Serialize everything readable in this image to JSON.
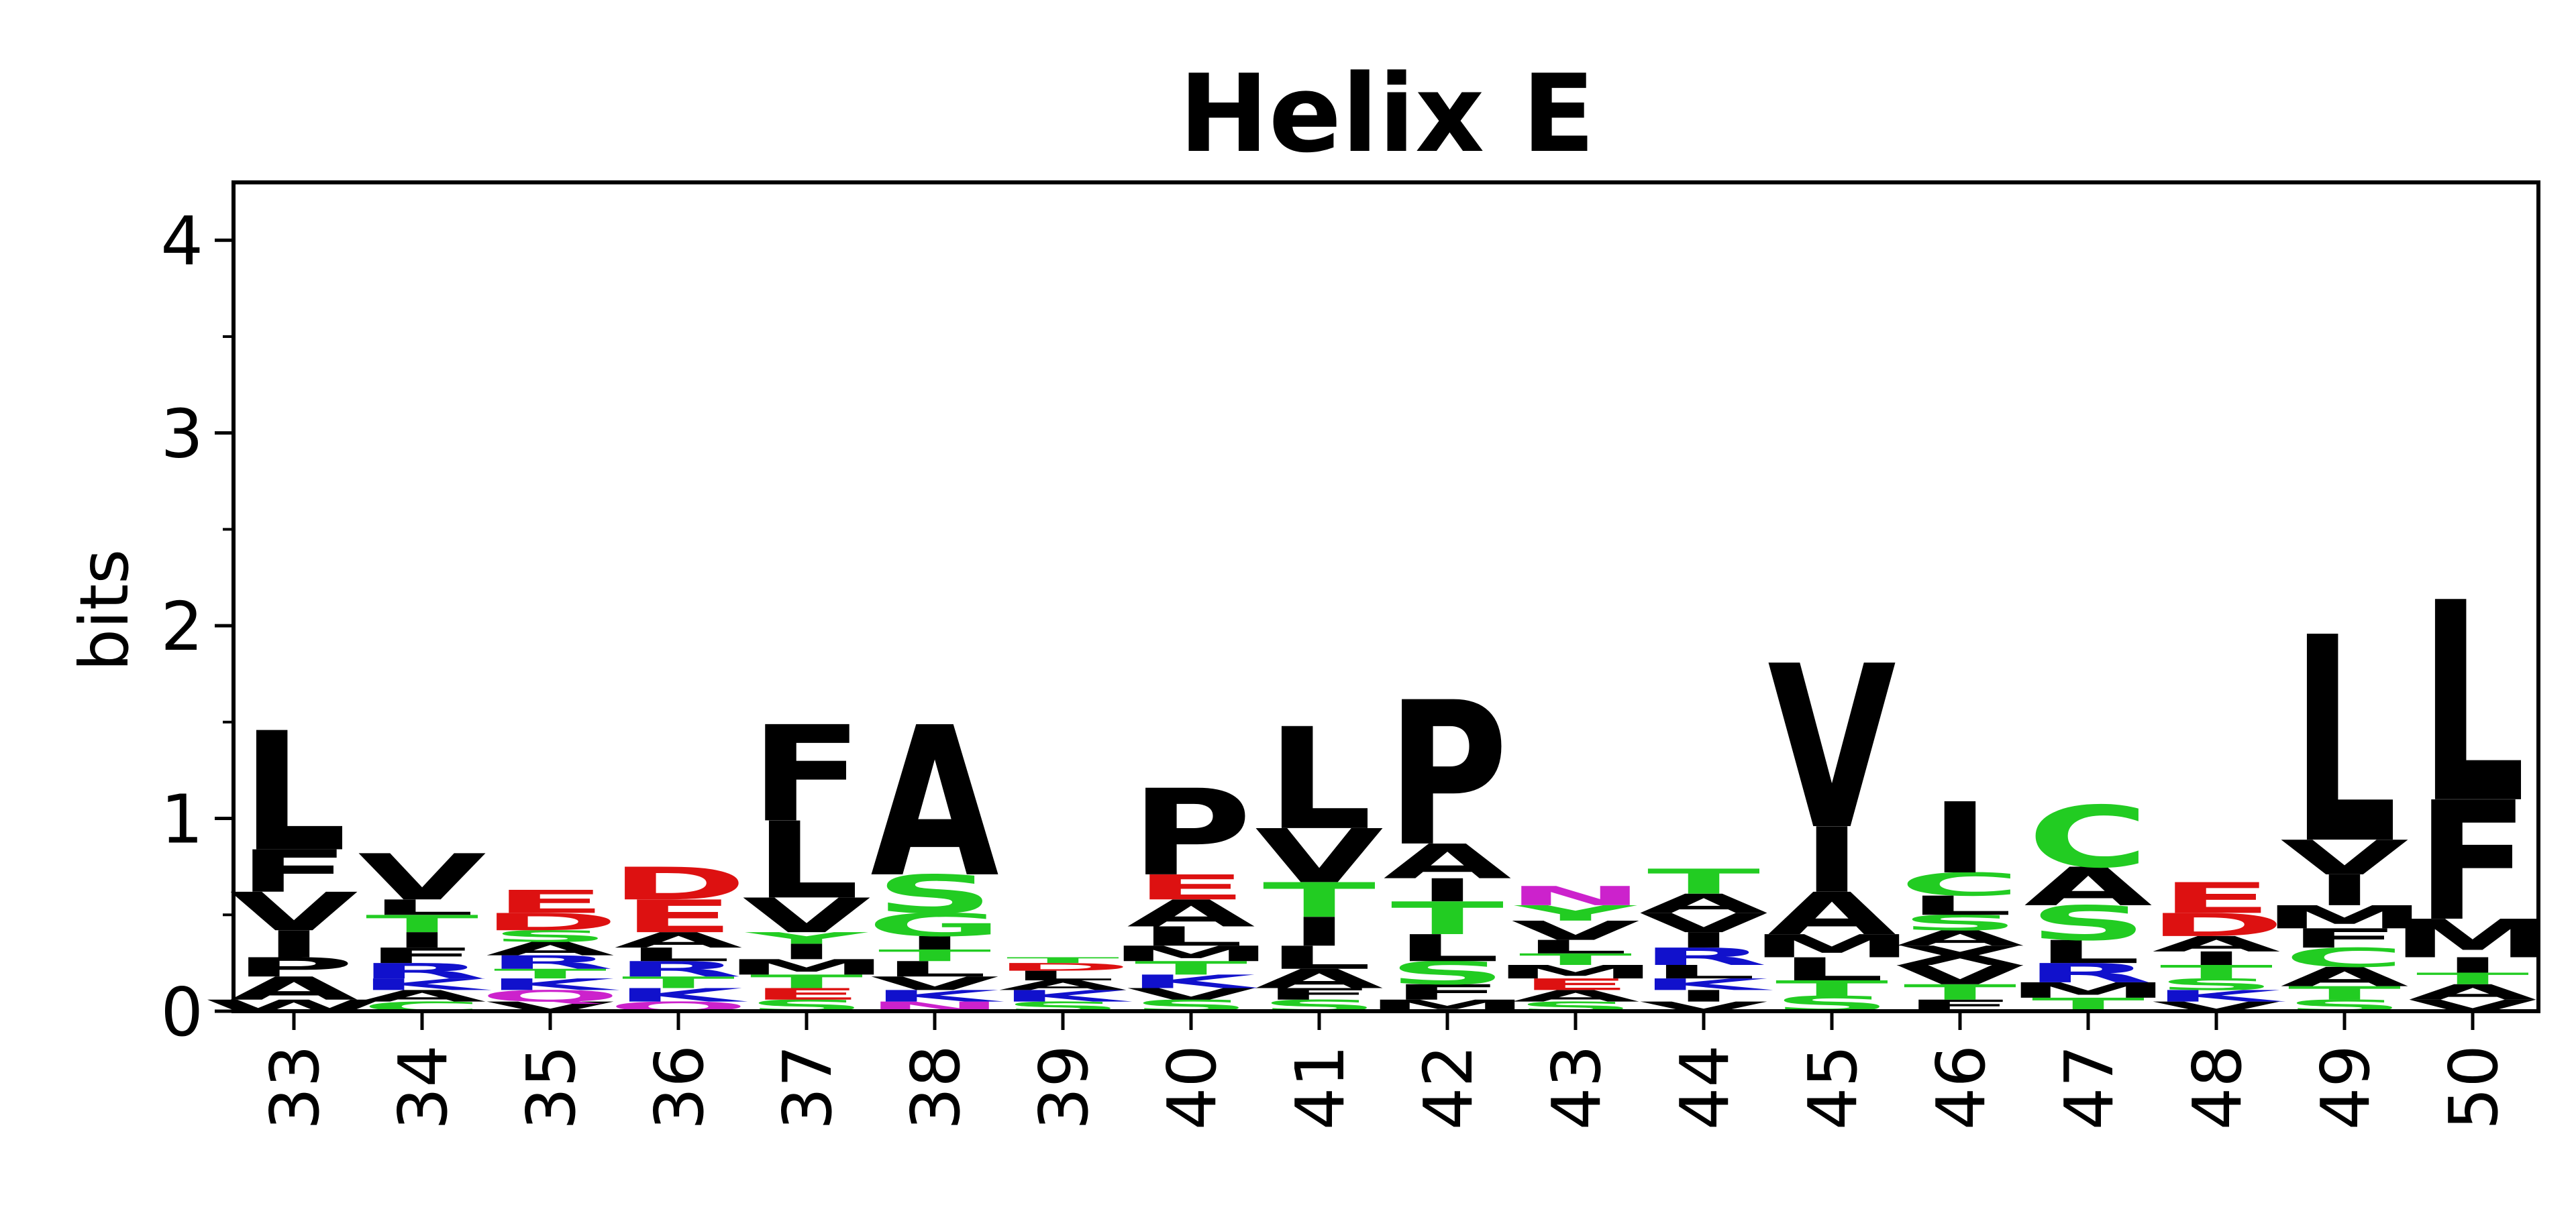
{
  "chart_data": {
    "type": "sequence-logo",
    "title": "Helix E",
    "xlabel": "",
    "ylabel": "bits",
    "ylim": [
      0,
      4.3
    ],
    "yticks": [
      "0",
      "1",
      "2",
      "3",
      "4"
    ],
    "grid": false,
    "colors": {
      "hydrophobic": "#000000",
      "polar": "#22cc22",
      "acidic": "#dd1111",
      "basic": "#1111cc",
      "amide": "#cc22cc"
    },
    "positions": [
      {
        "label": "33",
        "stack": [
          [
            "W",
            0.06,
            "hydrophobic"
          ],
          [
            "A",
            0.12,
            "hydrophobic"
          ],
          [
            "P",
            0.1,
            "hydrophobic"
          ],
          [
            "I",
            0.14,
            "hydrophobic"
          ],
          [
            "V",
            0.2,
            "hydrophobic"
          ],
          [
            "F",
            0.22,
            "hydrophobic"
          ],
          [
            "L",
            0.62,
            "hydrophobic"
          ]
        ]
      },
      {
        "label": "34",
        "stack": [
          [
            "C",
            0.05,
            "polar"
          ],
          [
            "A",
            0.06,
            "hydrophobic"
          ],
          [
            "K",
            0.06,
            "basic"
          ],
          [
            "R",
            0.08,
            "basic"
          ],
          [
            "F",
            0.08,
            "hydrophobic"
          ],
          [
            "I",
            0.08,
            "hydrophobic"
          ],
          [
            "T",
            0.09,
            "polar"
          ],
          [
            "L",
            0.08,
            "hydrophobic"
          ],
          [
            "V",
            0.24,
            "hydrophobic"
          ]
        ]
      },
      {
        "label": "35",
        "stack": [
          [
            "V",
            0.05,
            "hydrophobic"
          ],
          [
            "Q",
            0.06,
            "amide"
          ],
          [
            "K",
            0.06,
            "basic"
          ],
          [
            "T",
            0.05,
            "polar"
          ],
          [
            "R",
            0.07,
            "basic"
          ],
          [
            "A",
            0.07,
            "hydrophobic"
          ],
          [
            "S",
            0.06,
            "polar"
          ],
          [
            "D",
            0.09,
            "acidic"
          ],
          [
            "E",
            0.12,
            "acidic"
          ]
        ]
      },
      {
        "label": "36",
        "stack": [
          [
            "Q",
            0.05,
            "amide"
          ],
          [
            "K",
            0.07,
            "basic"
          ],
          [
            "T",
            0.06,
            "polar"
          ],
          [
            "R",
            0.08,
            "basic"
          ],
          [
            "L",
            0.07,
            "hydrophobic"
          ],
          [
            "A",
            0.08,
            "hydrophobic"
          ],
          [
            "E",
            0.17,
            "acidic"
          ],
          [
            "D",
            0.17,
            "acidic"
          ]
        ]
      },
      {
        "label": "37",
        "stack": [
          [
            "S",
            0.06,
            "polar"
          ],
          [
            "E",
            0.06,
            "acidic"
          ],
          [
            "T",
            0.07,
            "polar"
          ],
          [
            "M",
            0.08,
            "hydrophobic"
          ],
          [
            "I",
            0.08,
            "hydrophobic"
          ],
          [
            "Y",
            0.06,
            "polar"
          ],
          [
            "V",
            0.18,
            "hydrophobic"
          ],
          [
            "L",
            0.4,
            "hydrophobic"
          ],
          [
            "F",
            0.5,
            "hydrophobic"
          ]
        ]
      },
      {
        "label": "38",
        "stack": [
          [
            "N",
            0.05,
            "amide"
          ],
          [
            "K",
            0.06,
            "basic"
          ],
          [
            "V",
            0.07,
            "hydrophobic"
          ],
          [
            "L",
            0.08,
            "hydrophobic"
          ],
          [
            "T",
            0.06,
            "polar"
          ],
          [
            "I",
            0.07,
            "hydrophobic"
          ],
          [
            "G",
            0.12,
            "polar"
          ],
          [
            "S",
            0.2,
            "polar"
          ],
          [
            "A",
            0.78,
            "hydrophobic"
          ]
        ]
      },
      {
        "label": "39",
        "stack": [
          [
            "S",
            0.05,
            "polar"
          ],
          [
            "K",
            0.06,
            "basic"
          ],
          [
            "A",
            0.05,
            "hydrophobic"
          ],
          [
            "L",
            0.05,
            "hydrophobic"
          ],
          [
            "D",
            0.04,
            "acidic"
          ],
          [
            "T",
            0.03,
            "polar"
          ]
        ]
      },
      {
        "label": "40",
        "stack": [
          [
            "S",
            0.06,
            "polar"
          ],
          [
            "V",
            0.06,
            "hydrophobic"
          ],
          [
            "K",
            0.07,
            "basic"
          ],
          [
            "T",
            0.07,
            "polar"
          ],
          [
            "M",
            0.08,
            "hydrophobic"
          ],
          [
            "L",
            0.1,
            "hydrophobic"
          ],
          [
            "A",
            0.14,
            "hydrophobic"
          ],
          [
            "E",
            0.13,
            "acidic"
          ],
          [
            "P",
            0.45,
            "hydrophobic"
          ]
        ]
      },
      {
        "label": "41",
        "stack": [
          [
            "S",
            0.06,
            "polar"
          ],
          [
            "F",
            0.06,
            "hydrophobic"
          ],
          [
            "A",
            0.1,
            "hydrophobic"
          ],
          [
            "L",
            0.12,
            "hydrophobic"
          ],
          [
            "I",
            0.15,
            "hydrophobic"
          ],
          [
            "T",
            0.18,
            "polar"
          ],
          [
            "V",
            0.28,
            "hydrophobic"
          ],
          [
            "L",
            0.53,
            "hydrophobic"
          ]
        ]
      },
      {
        "label": "42",
        "stack": [
          [
            "M",
            0.06,
            "hydrophobic"
          ],
          [
            "F",
            0.08,
            "hydrophobic"
          ],
          [
            "S",
            0.12,
            "polar"
          ],
          [
            "L",
            0.14,
            "hydrophobic"
          ],
          [
            "T",
            0.17,
            "polar"
          ],
          [
            "I",
            0.12,
            "hydrophobic"
          ],
          [
            "A",
            0.18,
            "hydrophobic"
          ],
          [
            "P",
            0.75,
            "hydrophobic"
          ]
        ]
      },
      {
        "label": "43",
        "stack": [
          [
            "S",
            0.05,
            "polar"
          ],
          [
            "A",
            0.06,
            "hydrophobic"
          ],
          [
            "E",
            0.06,
            "acidic"
          ],
          [
            "M",
            0.07,
            "hydrophobic"
          ],
          [
            "T",
            0.06,
            "polar"
          ],
          [
            "L",
            0.07,
            "hydrophobic"
          ],
          [
            "V",
            0.1,
            "hydrophobic"
          ],
          [
            "Y",
            0.08,
            "polar"
          ],
          [
            "N",
            0.1,
            "amide"
          ]
        ]
      },
      {
        "label": "44",
        "stack": [
          [
            "V",
            0.05,
            "hydrophobic"
          ],
          [
            "I",
            0.06,
            "hydrophobic"
          ],
          [
            "K",
            0.06,
            "basic"
          ],
          [
            "L",
            0.07,
            "hydrophobic"
          ],
          [
            "R",
            0.09,
            "basic"
          ],
          [
            "I",
            0.08,
            "hydrophobic"
          ],
          [
            "V",
            0.1,
            "hydrophobic"
          ],
          [
            "A",
            0.1,
            "hydrophobic"
          ],
          [
            "T",
            0.13,
            "polar"
          ]
        ]
      },
      {
        "label": "45",
        "stack": [
          [
            "S",
            0.08,
            "polar"
          ],
          [
            "T",
            0.08,
            "polar"
          ],
          [
            "L",
            0.12,
            "hydrophobic"
          ],
          [
            "M",
            0.12,
            "hydrophobic"
          ],
          [
            "A",
            0.22,
            "hydrophobic"
          ],
          [
            "I",
            0.34,
            "hydrophobic"
          ],
          [
            "V",
            0.85,
            "hydrophobic"
          ]
        ]
      },
      {
        "label": "46",
        "stack": [
          [
            "F",
            0.06,
            "hydrophobic"
          ],
          [
            "T",
            0.08,
            "polar"
          ],
          [
            "V",
            0.1,
            "hydrophobic"
          ],
          [
            "X",
            0.1,
            "hydrophobic"
          ],
          [
            "A",
            0.08,
            "hydrophobic"
          ],
          [
            "S",
            0.08,
            "polar"
          ],
          [
            "L",
            0.1,
            "hydrophobic"
          ],
          [
            "C",
            0.12,
            "polar"
          ],
          [
            "I",
            0.37,
            "hydrophobic"
          ]
        ]
      },
      {
        "label": "47",
        "stack": [
          [
            "T",
            0.07,
            "polar"
          ],
          [
            "M",
            0.08,
            "hydrophobic"
          ],
          [
            "R",
            0.1,
            "basic"
          ],
          [
            "L",
            0.12,
            "hydrophobic"
          ],
          [
            "S",
            0.18,
            "polar"
          ],
          [
            "A",
            0.2,
            "hydrophobic"
          ],
          [
            "C",
            0.32,
            "polar"
          ]
        ]
      },
      {
        "label": "48",
        "stack": [
          [
            "V",
            0.05,
            "hydrophobic"
          ],
          [
            "K",
            0.06,
            "basic"
          ],
          [
            "S",
            0.06,
            "polar"
          ],
          [
            "T",
            0.07,
            "polar"
          ],
          [
            "I",
            0.07,
            "hydrophobic"
          ],
          [
            "A",
            0.08,
            "hydrophobic"
          ],
          [
            "D",
            0.12,
            "acidic"
          ],
          [
            "E",
            0.16,
            "acidic"
          ]
        ]
      },
      {
        "label": "49",
        "stack": [
          [
            "S",
            0.06,
            "polar"
          ],
          [
            "T",
            0.07,
            "polar"
          ],
          [
            "A",
            0.1,
            "hydrophobic"
          ],
          [
            "C",
            0.1,
            "polar"
          ],
          [
            "F",
            0.1,
            "hydrophobic"
          ],
          [
            "M",
            0.12,
            "hydrophobic"
          ],
          [
            "I",
            0.16,
            "hydrophobic"
          ],
          [
            "V",
            0.18,
            "hydrophobic"
          ],
          [
            "L",
            1.07,
            "hydrophobic"
          ]
        ]
      },
      {
        "label": "50",
        "stack": [
          [
            "V",
            0.06,
            "hydrophobic"
          ],
          [
            "A",
            0.08,
            "hydrophobic"
          ],
          [
            "T",
            0.06,
            "polar"
          ],
          [
            "I",
            0.08,
            "hydrophobic"
          ],
          [
            "M",
            0.2,
            "hydrophobic"
          ],
          [
            "F",
            0.62,
            "hydrophobic"
          ],
          [
            "L",
            1.04,
            "hydrophobic"
          ]
        ]
      }
    ]
  }
}
